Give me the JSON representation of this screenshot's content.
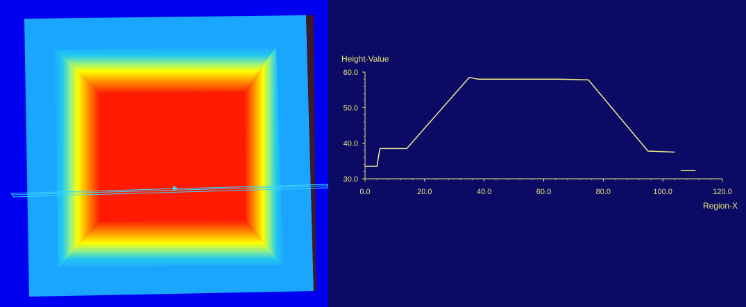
{
  "colors": {
    "surface_background": "#0000f0",
    "chart_background": "#0b0b66",
    "axis": "#e8e67a",
    "profile_line": "#f4f08a",
    "scan_line": "#3ad6ff",
    "heat_low": "#1aa6ff",
    "heat_mid": "#ffff00",
    "heat_high": "#ff1a00"
  },
  "surface_view": {
    "description_icon": "heightmap-3d-view",
    "scan_marker_icon": "triangle-marker-icon"
  },
  "chart_data": {
    "type": "line",
    "ylabel": "Height-Value",
    "xlabel": "Region-X",
    "xlim": [
      0,
      120
    ],
    "ylim": [
      30,
      60
    ],
    "x_ticks": [
      "0.0",
      "20.0",
      "40.0",
      "60.0",
      "80.0",
      "100.0",
      "120.0"
    ],
    "y_ticks": [
      "30.0",
      "40.0",
      "50.0",
      "60.0"
    ],
    "series": [
      {
        "segments": [
          {
            "x": [
              0,
              4,
              4.5,
              5,
              14,
              35,
              38,
              65,
              75,
              95,
              104
            ],
            "y": [
              33.5,
              33.5,
              36,
              38.5,
              38.5,
              58.5,
              58,
              58,
              57.8,
              37.8,
              37.5
            ]
          },
          {
            "x": [
              106,
              111
            ],
            "y": [
              32.3,
              32.3
            ]
          }
        ]
      }
    ]
  }
}
